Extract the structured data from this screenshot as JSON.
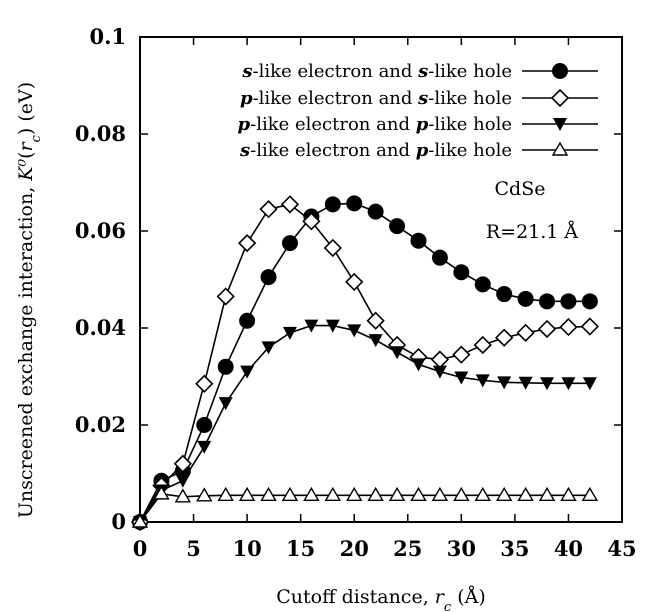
{
  "chart_data": {
    "type": "line",
    "xlabel": "Cutoff distance, r_c (Å)",
    "ylabel": "Unscreened exchange interaction, K⁰(r_c) (eV)",
    "xlim": [
      0,
      45
    ],
    "ylim": [
      0,
      0.1
    ],
    "x_ticks": [
      "0",
      "5",
      "10",
      "15",
      "20",
      "25",
      "30",
      "35",
      "40",
      "45"
    ],
    "y_ticks": [
      "0",
      "0.02",
      "0.04",
      "0.06",
      "0.08",
      "0.1"
    ],
    "grid": false,
    "legend_position": "top-right",
    "annotations": [
      "CdSe",
      "R=21.1 Å"
    ],
    "x": [
      0,
      2,
      4,
      6,
      8,
      10,
      12,
      14,
      16,
      18,
      20,
      22,
      24,
      26,
      28,
      30,
      32,
      34,
      36,
      38,
      40,
      42
    ],
    "series": [
      {
        "name": "s-like electron and s-like hole",
        "marker": "filled-circle",
        "values": [
          0,
          0.0085,
          0.0105,
          0.02,
          0.032,
          0.0415,
          0.0505,
          0.0575,
          0.063,
          0.0655,
          0.0657,
          0.064,
          0.061,
          0.058,
          0.0545,
          0.0515,
          0.049,
          0.047,
          0.046,
          0.0455,
          0.0455,
          0.0455
        ]
      },
      {
        "name": "p-like electron and s-like hole",
        "marker": "open-diamond",
        "values": [
          0,
          0.0075,
          0.012,
          0.0285,
          0.0465,
          0.0575,
          0.0645,
          0.0655,
          0.062,
          0.0565,
          0.0495,
          0.0415,
          0.0365,
          0.034,
          0.0335,
          0.0345,
          0.0365,
          0.038,
          0.039,
          0.0398,
          0.0402,
          0.0403
        ]
      },
      {
        "name": "p-like electron and p-like hole",
        "marker": "filled-triangle-down",
        "values": [
          0,
          0.0065,
          0.0085,
          0.0155,
          0.0245,
          0.031,
          0.036,
          0.039,
          0.0405,
          0.0405,
          0.0395,
          0.0375,
          0.035,
          0.0325,
          0.031,
          0.0298,
          0.0292,
          0.0288,
          0.0287,
          0.0286,
          0.0286,
          0.0286
        ]
      },
      {
        "name": "s-like electron and p-like hole",
        "marker": "open-triangle-up",
        "values": [
          0,
          0.0058,
          0.0052,
          0.0054,
          0.0055,
          0.0055,
          0.0055,
          0.0055,
          0.0055,
          0.0055,
          0.0055,
          0.0055,
          0.0055,
          0.0055,
          0.0055,
          0.0055,
          0.0055,
          0.0055,
          0.0055,
          0.0055,
          0.0055,
          0.0055
        ]
      }
    ]
  }
}
